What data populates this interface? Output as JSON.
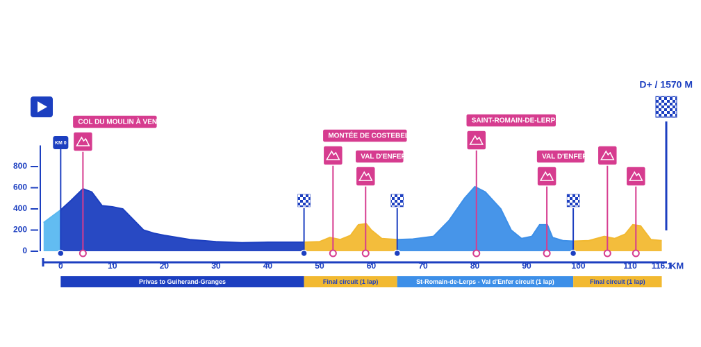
{
  "chart_data": {
    "type": "area",
    "annotation": "D+ / 1570 M",
    "x_unit": "KM",
    "km0_label": "KM 0",
    "xlim": [
      -3.4,
      117.1
    ],
    "xticks": [
      0,
      10,
      20,
      30,
      40,
      50,
      60,
      70,
      80,
      90,
      100,
      110,
      116.1
    ],
    "ylim": [
      0,
      1000
    ],
    "yticks": [
      0,
      200,
      400,
      600,
      800
    ],
    "series": [
      {
        "color": "#5ab8f0",
        "x": [
          -3.3,
          0
        ],
        "values": [
          270,
          390
        ]
      },
      {
        "color": "#1c3fc0",
        "x": [
          0,
          2,
          4.3,
          6,
          8,
          10,
          12,
          14,
          16,
          18,
          20,
          25,
          30,
          35,
          40,
          47
        ],
        "values": [
          390,
          480,
          590,
          560,
          430,
          420,
          400,
          300,
          200,
          170,
          150,
          110,
          90,
          80,
          85,
          85
        ]
      },
      {
        "color": "#f2b931",
        "x": [
          47,
          50,
          52,
          54,
          56,
          57.5,
          59,
          60,
          62,
          65
        ],
        "values": [
          85,
          90,
          130,
          110,
          150,
          250,
          260,
          200,
          120,
          110
        ]
      },
      {
        "color": "#3d8fe8",
        "x": [
          65,
          68,
          72,
          75,
          78,
          80,
          82,
          85,
          87,
          89,
          91,
          92.5,
          94,
          95,
          97,
          99
        ],
        "values": [
          110,
          115,
          140,
          290,
          500,
          610,
          560,
          400,
          200,
          120,
          140,
          250,
          250,
          130,
          100,
          95
        ]
      },
      {
        "color": "#f2b931",
        "x": [
          99,
          102,
          105,
          107,
          109,
          110.5,
          112,
          114,
          116.1
        ],
        "values": [
          95,
          100,
          140,
          120,
          160,
          250,
          240,
          110,
          100
        ]
      }
    ],
    "climbs": [
      {
        "name": "COL DU MOULIN À VENT",
        "km": 4.3
      },
      {
        "name": "MONTÉE DE COSTEBELLE",
        "km": 52.6
      },
      {
        "name": "VAL D'ENFER",
        "km": 58.9
      },
      {
        "name": "SAINT-ROMAIN-DE-LERPS",
        "km": 80.3
      },
      {
        "name": "VAL D'ENFER",
        "km": 93.9
      },
      {
        "km": 105.6
      },
      {
        "km": 111.1
      }
    ],
    "flags": [
      47,
      65,
      99
    ],
    "segments": [
      {
        "label": "Privas to Guiherand-Granges",
        "start": 0,
        "end": 47,
        "color": "#1c3fc0"
      },
      {
        "label": "Final circuit (1 lap)",
        "start": 47,
        "end": 65,
        "color": "#f2b931"
      },
      {
        "label": "St-Romain-de-Lerps - Val d'Enfer circuit (1 lap)",
        "start": 65,
        "end": 99,
        "color": "#3d8fe8"
      },
      {
        "label": "Final circuit (1 lap)",
        "start": 99,
        "end": 116.1,
        "color": "#f2b931"
      }
    ]
  }
}
